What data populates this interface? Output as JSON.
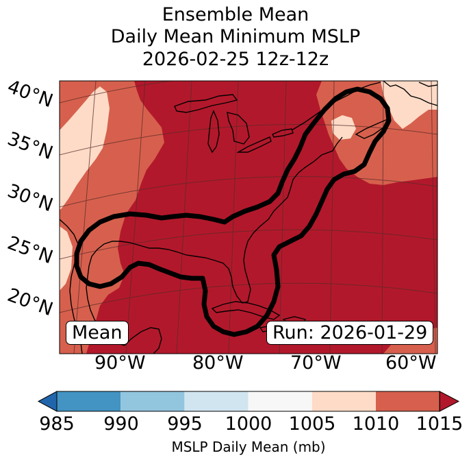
{
  "title": {
    "line1": "Ensemble Mean",
    "line2": "Daily Mean Minimum MSLP",
    "line3": "2026-02-25 12z-12z"
  },
  "lat_labels": [
    "40°N",
    "35°N",
    "30°N",
    "25°N",
    "20°N"
  ],
  "lon_labels": [
    "90°W",
    "80°W",
    "70°W",
    "60°W"
  ],
  "map_boxes": {
    "left": "Mean",
    "right": "Run: 2026-01-29"
  },
  "colorbar": {
    "ticks": [
      "985",
      "990",
      "995",
      "1000",
      "1005",
      "1010",
      "1015"
    ],
    "label": "MSLP Daily Mean (mb)",
    "colors": [
      "#4393c3",
      "#92c5de",
      "#d1e5f0",
      "#f7f7f7",
      "#fddbc7",
      "#d6604d"
    ],
    "under_color": "#2166ac",
    "over_color": "#b2182b"
  },
  "field_colors": {
    "1005_1010": "#fddbc7",
    "1010_1015": "#d6604d",
    "above_1015": "#b2182b"
  }
}
